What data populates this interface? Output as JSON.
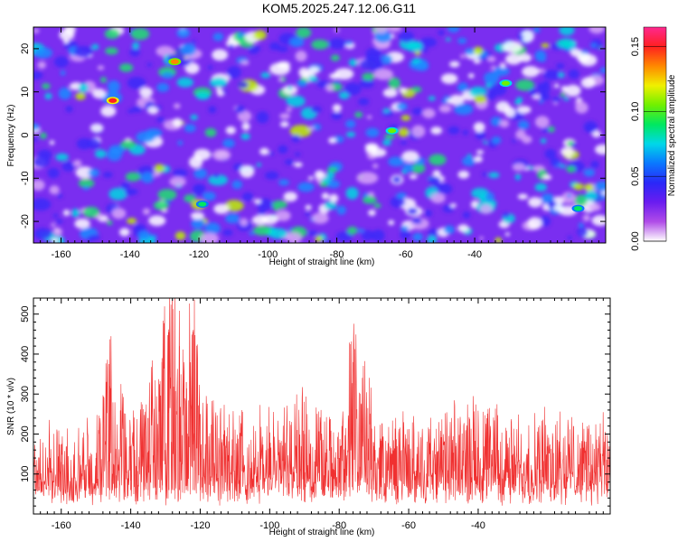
{
  "chart_data": [
    {
      "type": "heatmap",
      "title": "KOM5.2025.247.12.06.G11",
      "xlabel": "Height of straight line (km)",
      "ylabel": "Frequency (Hz)",
      "xlim": [
        -168,
        -2
      ],
      "ylim": [
        -25,
        25
      ],
      "xticks": [
        -160,
        -140,
        -120,
        -100,
        -80,
        -60,
        -40
      ],
      "yticks": [
        -20,
        -10,
        0,
        10,
        20
      ],
      "colorbar": {
        "label": "Normalized spectral amplitude",
        "range": [
          0,
          0.165
        ],
        "ticks": [
          "0.00",
          "0.05",
          "0.10",
          "0.15"
        ],
        "colormap": [
          "#ffffff",
          "#b04ce8",
          "#6a1cf0",
          "#2a28f8",
          "#0a78ff",
          "#00d8e8",
          "#00e860",
          "#70f000",
          "#f0f000",
          "#ff8800",
          "#ff2020",
          "#ff2890"
        ]
      },
      "hotspots": [
        {
          "x": -145,
          "y": 8,
          "value": 0.15
        },
        {
          "x": -127,
          "y": 17,
          "value": 0.13
        },
        {
          "x": -31,
          "y": 12,
          "value": 0.11
        },
        {
          "x": -64,
          "y": 1,
          "value": 0.1
        },
        {
          "x": -119,
          "y": -16,
          "value": 0.09
        },
        {
          "x": -10,
          "y": -17,
          "value": 0.09
        }
      ]
    },
    {
      "type": "line",
      "xlabel": "Height of straight line (km)",
      "ylabel": "SNR (10 * v/v)",
      "xlim": [
        -168,
        -2
      ],
      "ylim": [
        0,
        540
      ],
      "xticks": [
        -160,
        -140,
        -120,
        -100,
        -80,
        -60,
        -40
      ],
      "yticks": [
        100,
        200,
        300,
        400,
        500
      ],
      "color": "#f03030",
      "series": [
        {
          "x": [
            -168,
            -160,
            -150,
            -146,
            -140,
            -135,
            -131,
            -129,
            -128,
            -126,
            -124,
            -122,
            -120,
            -110,
            -100,
            -90,
            -80,
            -76,
            -70,
            -60,
            -50,
            -40,
            -30,
            -20,
            -10,
            -2
          ],
          "values": [
            120,
            130,
            140,
            320,
            150,
            240,
            380,
            455,
            535,
            420,
            330,
            460,
            250,
            160,
            160,
            200,
            140,
            380,
            170,
            150,
            160,
            200,
            150,
            170,
            160,
            140
          ]
        }
      ]
    }
  ]
}
